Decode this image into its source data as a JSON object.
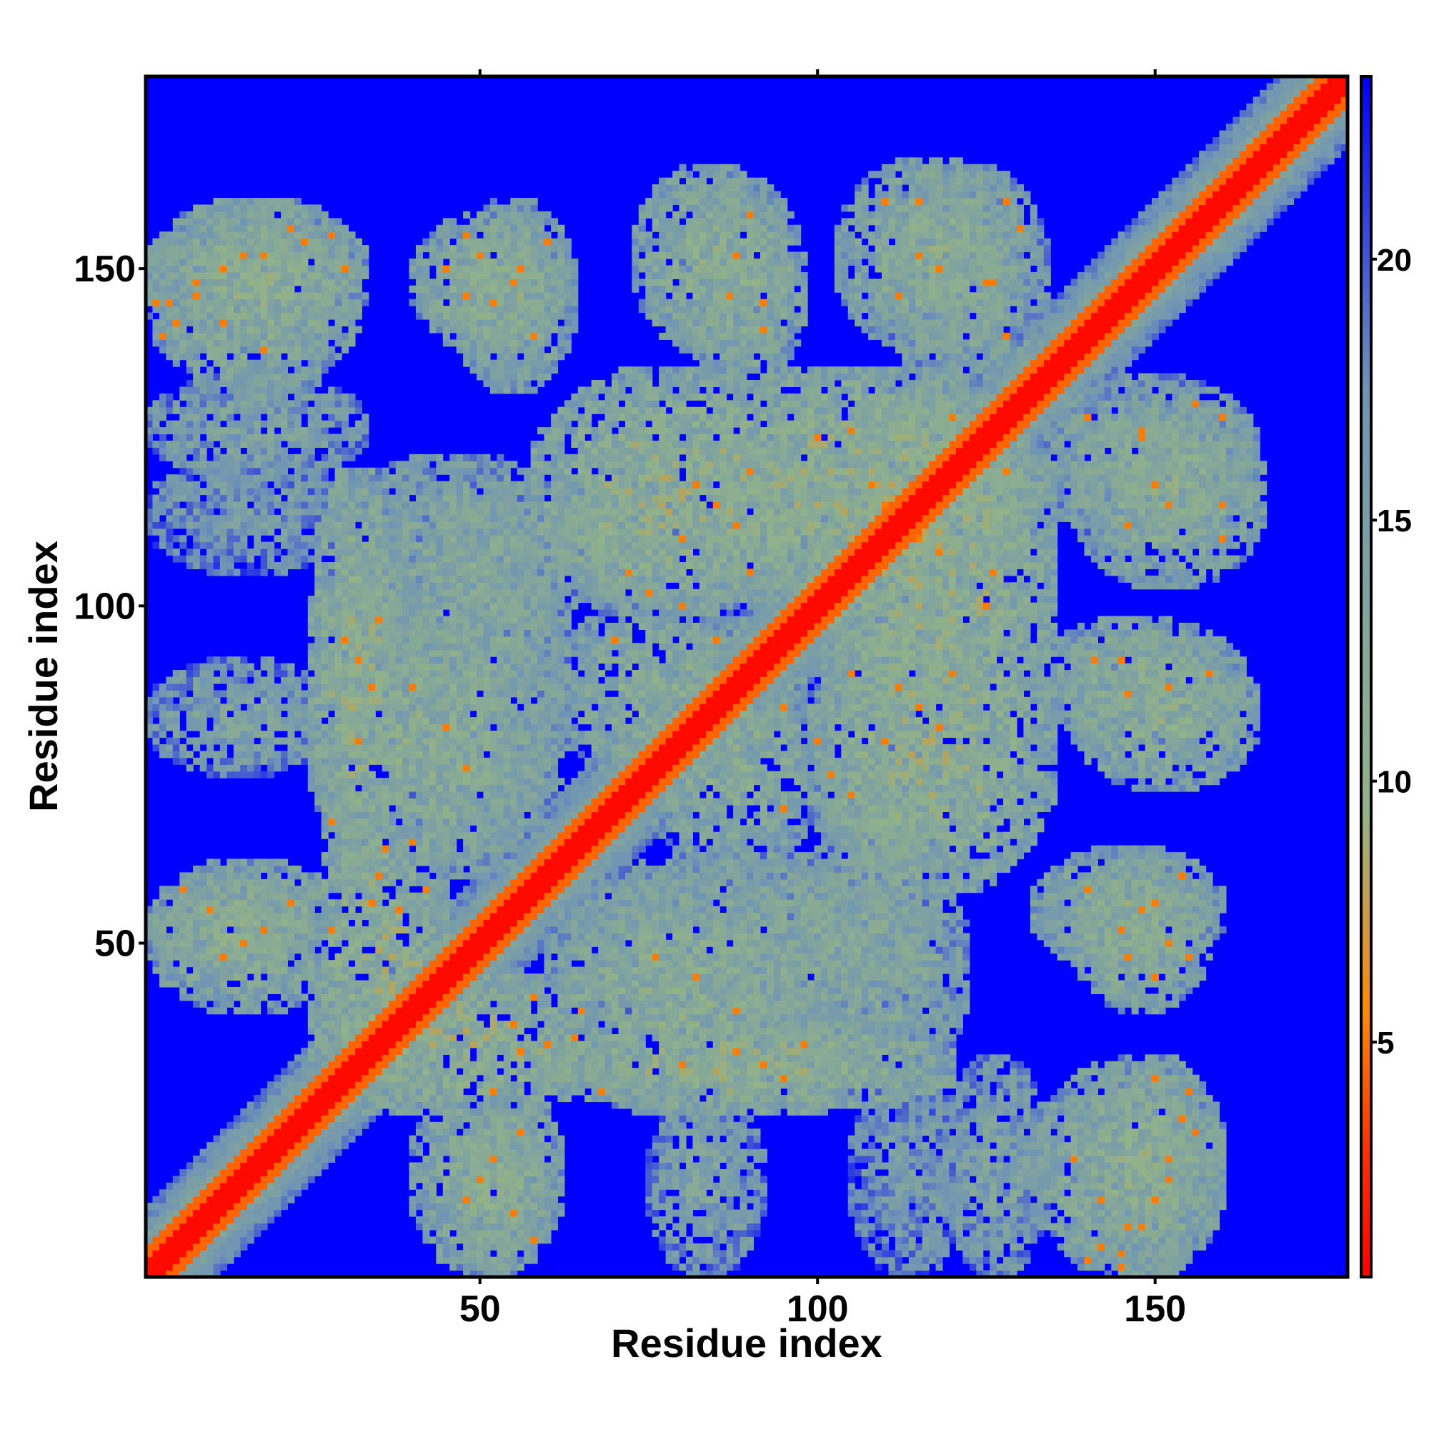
{
  "chart_data": {
    "type": "heatmap",
    "title": "",
    "xlabel": "Residue index",
    "ylabel": "Residue index",
    "xlim": [
      1,
      178
    ],
    "ylim": [
      1,
      178
    ],
    "x_ticks": [
      50,
      100,
      150
    ],
    "y_ticks": [
      50,
      100,
      150
    ],
    "n_residues": 178,
    "colorbar": {
      "range": [
        0.5,
        23.5
      ],
      "ticks": [
        5,
        10,
        15,
        20
      ],
      "colors": [
        "#ff0000",
        "#ff3300",
        "#ff8800",
        "#92b289",
        "#6f94b5",
        "#0000ff"
      ],
      "stops": [
        0,
        0.11,
        0.22,
        0.39,
        0.74,
        1.0
      ]
    },
    "diagonal_band": {
      "core_max_offset": 2,
      "orange_max_offset": 4,
      "band_half_width": 10
    },
    "contact_blocks": [
      {
        "x": [
          1,
          33
        ],
        "y": [
          138,
          160
        ],
        "value": 12
      },
      {
        "x": [
          40,
          63
        ],
        "y": [
          138,
          158
        ],
        "value": 12
      },
      {
        "x": [
          73,
          95
        ],
        "y": [
          138,
          165
        ],
        "value": 12
      },
      {
        "x": [
          103,
          130
        ],
        "y": [
          138,
          166
        ],
        "value": 12
      },
      {
        "x": [
          1,
          33
        ],
        "y": [
          119,
          134
        ],
        "value": 14
      },
      {
        "x": [
          25,
          38
        ],
        "y": [
          60,
          120
        ],
        "value": 11
      },
      {
        "x": [
          38,
          63
        ],
        "y": [
          60,
          118
        ],
        "value": 13
      },
      {
        "x": [
          58,
          100
        ],
        "y": [
          100,
          135
        ],
        "value": 11
      },
      {
        "x": [
          80,
          132
        ],
        "y": [
          100,
          135
        ],
        "value": 11
      },
      {
        "x": [
          1,
          25
        ],
        "y": [
          46,
          60
        ],
        "value": 12
      },
      {
        "x": [
          25,
          70
        ],
        "y": [
          25,
          46
        ],
        "value": 11
      },
      {
        "x": [
          40,
          62
        ],
        "y": [
          1,
          30
        ],
        "value": 12
      },
      {
        "x": [
          60,
          100
        ],
        "y": [
          25,
          60
        ],
        "value": 12
      },
      {
        "x": [
          75,
          92
        ],
        "y": [
          1,
          28
        ],
        "value": 14
      },
      {
        "x": [
          92,
          122
        ],
        "y": [
          28,
          65
        ],
        "value": 13
      },
      {
        "x": [
          100,
          125
        ],
        "y": [
          80,
          100
        ],
        "value": 12
      },
      {
        "x": [
          75,
          100
        ],
        "y": [
          60,
          95
        ],
        "value": 12
      },
      {
        "x": [
          100,
          125
        ],
        "y": [
          60,
          80
        ],
        "value": 13
      },
      {
        "x": [
          132,
          165
        ],
        "y": [
          110,
          134
        ],
        "value": 13
      },
      {
        "x": [
          132,
          163
        ],
        "y": [
          80,
          98
        ],
        "value": 12
      },
      {
        "x": [
          132,
          160
        ],
        "y": [
          46,
          64
        ],
        "value": 12
      },
      {
        "x": [
          132,
          160
        ],
        "y": [
          1,
          32
        ],
        "value": 12
      },
      {
        "x": [
          105,
          122
        ],
        "y": [
          1,
          30
        ],
        "value": 15
      }
    ],
    "contact_points": [
      [
        2,
        145
      ],
      [
        5,
        142
      ],
      [
        8,
        146
      ],
      [
        12,
        150
      ],
      [
        18,
        152
      ],
      [
        24,
        154
      ],
      [
        28,
        155
      ],
      [
        30,
        150
      ],
      [
        45,
        150
      ],
      [
        48,
        146
      ],
      [
        50,
        152
      ],
      [
        55,
        148
      ],
      [
        60,
        154
      ],
      [
        88,
        152
      ],
      [
        87,
        146
      ],
      [
        92,
        141
      ],
      [
        110,
        160
      ],
      [
        115,
        152
      ],
      [
        112,
        146
      ],
      [
        125,
        148
      ],
      [
        128,
        160
      ],
      [
        35,
        98
      ],
      [
        32,
        92
      ],
      [
        40,
        88
      ],
      [
        45,
        82
      ],
      [
        48,
        76
      ],
      [
        36,
        64
      ],
      [
        42,
        58
      ],
      [
        34,
        56
      ],
      [
        10,
        55
      ],
      [
        15,
        50
      ],
      [
        22,
        56
      ],
      [
        28,
        52
      ],
      [
        55,
        38
      ],
      [
        60,
        35
      ],
      [
        65,
        40
      ],
      [
        68,
        28
      ],
      [
        80,
        32
      ],
      [
        88,
        34
      ],
      [
        95,
        30
      ],
      [
        52,
        18
      ],
      [
        55,
        10
      ],
      [
        58,
        6
      ],
      [
        48,
        12
      ],
      [
        75,
        102
      ],
      [
        80,
        110
      ],
      [
        85,
        115
      ],
      [
        90,
        120
      ],
      [
        100,
        125
      ],
      [
        108,
        118
      ],
      [
        115,
        110
      ],
      [
        120,
        128
      ],
      [
        126,
        105
      ],
      [
        95,
        85
      ],
      [
        100,
        80
      ],
      [
        105,
        90
      ],
      [
        112,
        88
      ],
      [
        118,
        82
      ],
      [
        95,
        70
      ],
      [
        105,
        72
      ],
      [
        140,
        128
      ],
      [
        148,
        126
      ],
      [
        156,
        130
      ],
      [
        150,
        118
      ],
      [
        160,
        115
      ],
      [
        145,
        92
      ],
      [
        152,
        88
      ],
      [
        158,
        90
      ],
      [
        140,
        58
      ],
      [
        145,
        52
      ],
      [
        150,
        56
      ],
      [
        155,
        48
      ],
      [
        138,
        18
      ],
      [
        142,
        12
      ],
      [
        148,
        8
      ],
      [
        152,
        15
      ],
      [
        156,
        22
      ],
      [
        145,
        4
      ],
      [
        140,
        3
      ]
    ]
  }
}
